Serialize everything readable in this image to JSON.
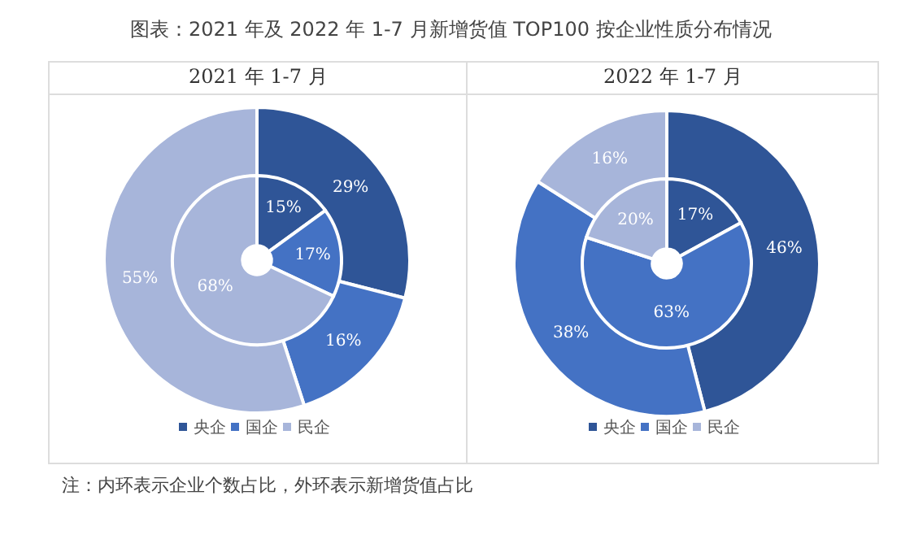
{
  "chart_data": [
    {
      "type": "donut",
      "title": "2021 年 1-7 月",
      "categories": [
        "央企",
        "国企",
        "民企"
      ],
      "colors": [
        "#2f5597",
        "#4472c4",
        "#a7b5da"
      ],
      "legend": "bottom",
      "series": [
        {
          "values": [
            29,
            16,
            55
          ],
          "value_labels": [
            "29%",
            "16%",
            "55%"
          ]
        },
        {
          "values": [
            15,
            17,
            68
          ],
          "value_labels": [
            "15%",
            "17%",
            "68%"
          ]
        }
      ],
      "annotations": [
        "图表：2021 年及 2022 年 1-7 月新增货值 TOP100 按企业性质分布情况",
        "注：内环表示企业个数占比，外环表示新增货值占比"
      ]
    },
    {
      "type": "donut",
      "title": "2022 年 1-7 月",
      "categories": [
        "央企",
        "国企",
        "民企"
      ],
      "colors": [
        "#2f5597",
        "#4472c4",
        "#a7b5da"
      ],
      "legend": "bottom",
      "series": [
        {
          "values": [
            46,
            38,
            16
          ],
          "value_labels": [
            "46%",
            "38%",
            "16%"
          ]
        },
        {
          "values": [
            17,
            63,
            20
          ],
          "value_labels": [
            "17%",
            "63%",
            "20%"
          ]
        }
      ]
    }
  ]
}
